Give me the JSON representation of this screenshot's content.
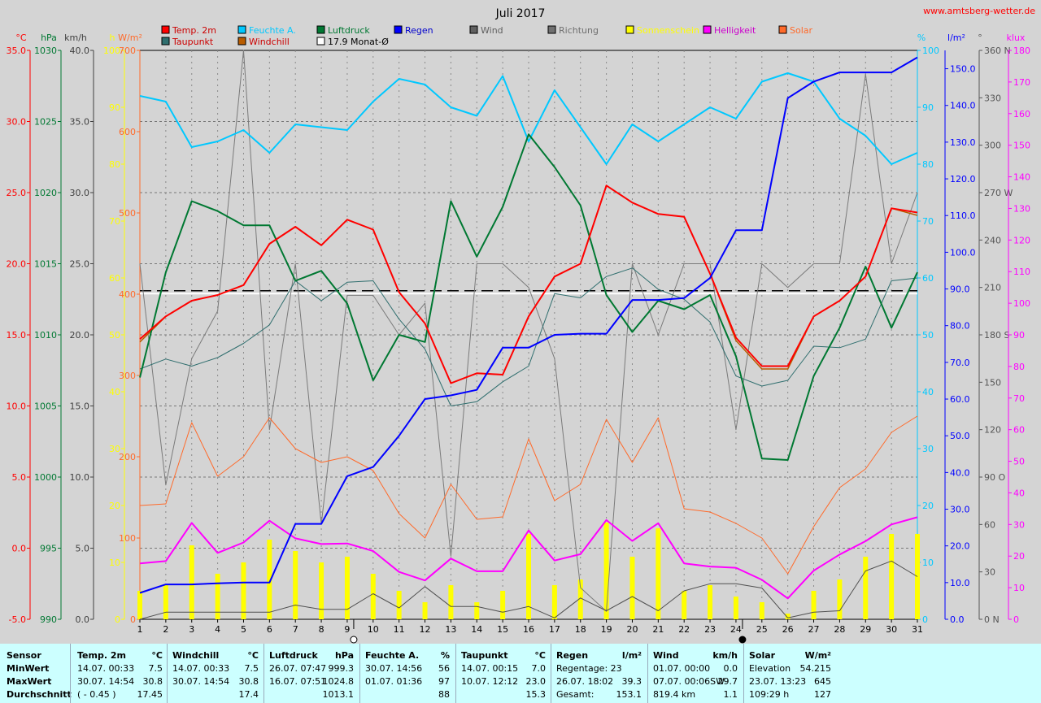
{
  "header": {
    "title": "Juli 2017",
    "site": "www.amtsberg-wetter.de",
    "monthly_avg_label": "17.9 Monat-Ø"
  },
  "colors": {
    "background": "#d4d4d4",
    "temp": "#ff0000",
    "humidity": "#00c8ff",
    "pressure": "#007832",
    "rain": "#0000ff",
    "wind": "#505050",
    "direction": "#7a7a7a",
    "sunshine": "#ffff00",
    "brightness": "#ff00ff",
    "solar": "#ff6a2a",
    "dewpoint": "#2f6e6e",
    "windchill": "#b85c00",
    "avg_line": "#ffffff",
    "stats_bg": "#ccffff"
  },
  "legend": [
    {
      "label": "Temp. 2m",
      "color": "#ff0000",
      "text_color": "#cc0000"
    },
    {
      "label": "Feuchte A.",
      "color": "#00c8ff",
      "text_color": "#00c8ff"
    },
    {
      "label": "Luftdruck",
      "color": "#007832",
      "text_color": "#007832"
    },
    {
      "label": "Regen",
      "color": "#0000ff",
      "text_color": "#0000cc"
    },
    {
      "label": "Wind",
      "color": "#606060",
      "text_color": "#606060"
    },
    {
      "label": "Richtung",
      "color": "#707070",
      "text_color": "#707070"
    },
    {
      "label": "Sonnenschein",
      "color": "#ffff00",
      "text_color": "#ffff00"
    },
    {
      "label": "Helligkeit",
      "color": "#ff00ff",
      "text_color": "#cc00cc"
    },
    {
      "label": "Solar",
      "color": "#ff6a2a",
      "text_color": "#ff6a2a"
    },
    {
      "label": "Taupunkt",
      "color": "#2f6e6e",
      "text_color": "#cc0000"
    },
    {
      "label": "Windchill",
      "color": "#b85c00",
      "text_color": "#cc0000"
    },
    {
      "label": "17.9 Monat-Ø",
      "color": "#ffffff",
      "text_color": "#000000"
    }
  ],
  "axes_left": [
    {
      "name": "temp",
      "unit": "°C",
      "color": "#ff0000",
      "ticks": [
        "35.0",
        "30.0",
        "25.0",
        "20.0",
        "15.0",
        "10.0",
        "5.0",
        "0.0",
        "-5.0"
      ]
    },
    {
      "name": "pressure",
      "unit": "hPa",
      "color": "#007832",
      "ticks": [
        "1030",
        "1025",
        "1020",
        "1015",
        "1010",
        "1005",
        "1000",
        "995",
        "990"
      ]
    },
    {
      "name": "wind",
      "unit": "km/h",
      "color": "#404040",
      "ticks": [
        "40.0",
        "35.0",
        "30.0",
        "25.0",
        "20.0",
        "15.0",
        "10.0",
        "5.0",
        "0.0"
      ]
    },
    {
      "name": "sunshine",
      "unit": "h",
      "color": "#ffff00",
      "ticks": [
        "100",
        "90",
        "80",
        "70",
        "60",
        "50",
        "40",
        "30",
        "20",
        "10",
        "0"
      ]
    },
    {
      "name": "solar",
      "unit": "W/m²",
      "color": "#ff6a2a",
      "ticks": [
        "700",
        "600",
        "500",
        "400",
        "300",
        "200",
        "100",
        "0"
      ]
    }
  ],
  "axes_right": [
    {
      "name": "humidity",
      "unit": "%",
      "color": "#00c8ff",
      "ticks": [
        "100",
        "90",
        "80",
        "70",
        "60",
        "50",
        "40",
        "30",
        "20",
        "10",
        "0"
      ]
    },
    {
      "name": "rain",
      "unit": "l/m²",
      "color": "#0000ff",
      "ticks": [
        "150.0",
        "140.0",
        "130.0",
        "120.0",
        "110.0",
        "100.0",
        "90.0",
        "80.0",
        "70.0",
        "60.0",
        "50.0",
        "40.0",
        "30.0",
        "20.0",
        "10.0",
        "0.0"
      ]
    },
    {
      "name": "direction",
      "unit": "°",
      "color": "#555555",
      "ticks": [
        "360 N",
        "330",
        "300",
        "270 W",
        "240",
        "210",
        "180 S",
        "150",
        "120",
        "90 O",
        "60",
        "30",
        "0 N"
      ]
    },
    {
      "name": "brightness",
      "unit": "klux",
      "color": "#ff00ff",
      "ticks": [
        "180",
        "170",
        "160",
        "150",
        "140",
        "130",
        "120",
        "110",
        "100",
        "90",
        "80",
        "70",
        "60",
        "50",
        "40",
        "30",
        "20",
        "10",
        "0"
      ]
    }
  ],
  "chart_data": {
    "type": "line",
    "title": "Juli 2017",
    "x": [
      1,
      2,
      3,
      4,
      5,
      6,
      7,
      8,
      9,
      10,
      11,
      12,
      13,
      14,
      15,
      16,
      17,
      18,
      19,
      20,
      21,
      22,
      23,
      24,
      25,
      26,
      27,
      28,
      29,
      30,
      31
    ],
    "x_tick_labels": [
      "1",
      "2",
      "3",
      "4",
      "5",
      "6",
      "7",
      "8",
      "9",
      "10",
      "11",
      "12",
      "13",
      "14",
      "15",
      "16",
      "17",
      "18",
      "19",
      "20",
      "21",
      "22",
      "23",
      "24",
      "25",
      "26",
      "27",
      "28",
      "29",
      "30",
      "31"
    ],
    "moon_markers": [
      {
        "day": 9,
        "phase": "full"
      },
      {
        "day": 24,
        "phase": "new"
      }
    ],
    "series": [
      {
        "name": "Temp. 2m",
        "unit": "°C",
        "values": [
          14.7,
          16.3,
          17.4,
          17.8,
          18.5,
          21.4,
          22.6,
          21.3,
          23.1,
          22.4,
          18.0,
          15.8,
          11.6,
          12.3,
          12.2,
          16.3,
          19.1,
          20.0,
          25.5,
          24.3,
          23.5,
          23.3,
          19.3,
          14.8,
          12.8,
          12.8,
          16.3,
          17.4,
          19.1,
          23.9,
          23.6
        ]
      },
      {
        "name": "Taupunkt",
        "unit": "°C",
        "values": [
          12.6,
          13.3,
          12.8,
          13.4,
          14.4,
          15.7,
          18.8,
          17.4,
          18.7,
          18.8,
          16.1,
          14.0,
          10.0,
          10.3,
          11.7,
          12.8,
          17.9,
          17.6,
          19.1,
          19.7,
          18.2,
          17.5,
          15.9,
          12.1,
          11.4,
          11.8,
          14.2,
          14.1,
          14.7,
          18.8,
          19.0
        ]
      },
      {
        "name": "Windchill",
        "unit": "°C",
        "values": [
          14.5,
          16.3,
          17.4,
          17.8,
          18.5,
          21.4,
          22.6,
          21.3,
          23.1,
          22.4,
          18.0,
          15.8,
          11.6,
          12.3,
          12.2,
          16.3,
          19.1,
          20.0,
          25.5,
          24.3,
          23.5,
          23.3,
          19.3,
          14.6,
          12.6,
          12.6,
          16.3,
          17.4,
          19.1,
          23.9,
          23.4
        ]
      },
      {
        "name": "Feuchte A.",
        "unit": "%",
        "values": [
          92,
          91,
          83,
          84,
          86,
          82,
          87,
          86.5,
          86,
          91,
          95,
          94,
          90,
          88.5,
          95.5,
          84,
          93,
          86.5,
          80,
          87,
          84,
          87,
          90,
          88,
          94.5,
          96,
          94.5,
          88,
          85,
          80,
          82
        ]
      },
      {
        "name": "Luftdruck",
        "unit": "hPa",
        "values": [
          1007.0,
          1014.4,
          1019.4,
          1018.7,
          1017.7,
          1017.7,
          1013.8,
          1014.5,
          1012.2,
          1006.8,
          1010.0,
          1009.5,
          1019.4,
          1015.5,
          1019.0,
          1024.1,
          1021.8,
          1019.1,
          1012.8,
          1010.2,
          1012.4,
          1011.8,
          1012.8,
          1008.5,
          1001.3,
          1001.2,
          1007.1,
          1010.5,
          1014.8,
          1010.5,
          1014.4
        ]
      },
      {
        "name": "Regen",
        "unit": "l/m²",
        "values": [
          7.2,
          9.5,
          9.5,
          9.8,
          10.0,
          10.0,
          26.0,
          26.0,
          39.0,
          41.5,
          50.0,
          60.0,
          61.0,
          62.5,
          74.0,
          74.0,
          77.5,
          77.8,
          77.8,
          87.0,
          87.0,
          87.5,
          93.0,
          106.0,
          106.0,
          142.0,
          146.5,
          149.0,
          149.0,
          149.0,
          153.1
        ]
      },
      {
        "name": "Wind",
        "unit": "km/h",
        "values": [
          0.0,
          0.5,
          0.5,
          0.5,
          0.5,
          0.5,
          1.0,
          0.7,
          0.7,
          1.8,
          0.8,
          2.3,
          0.9,
          0.9,
          0.5,
          0.9,
          0.1,
          1.5,
          0.6,
          1.6,
          0.6,
          2.0,
          2.5,
          2.5,
          2.2,
          0.1,
          0.5,
          0.6,
          3.4,
          4.1,
          3.0
        ]
      },
      {
        "name": "Richtung",
        "unit": "°",
        "values": [
          225,
          85,
          165,
          195,
          360,
          120,
          225,
          60,
          205,
          205,
          180,
          200,
          40,
          225,
          225,
          210,
          165,
          20,
          5,
          225,
          180,
          225,
          225,
          120,
          225,
          210,
          225,
          225,
          345,
          225,
          270
        ]
      },
      {
        "name": "Sonnenschein",
        "unit": "h",
        "values": [
          5,
          6,
          13,
          8,
          10,
          14,
          12,
          10,
          11,
          8,
          5,
          3,
          6,
          3,
          5,
          15,
          6,
          7,
          17,
          11,
          16,
          5,
          6,
          4,
          3,
          1,
          5,
          7,
          11,
          15,
          15
        ]
      },
      {
        "name": "Helligkeit",
        "unit": "klux",
        "values": [
          17.7,
          18.4,
          30.5,
          21.0,
          24.3,
          31.2,
          25.6,
          23.8,
          24.0,
          21.6,
          15.0,
          12.3,
          19.2,
          15.2,
          15.2,
          28.1,
          18.6,
          20.6,
          31.4,
          24.8,
          30.4,
          17.7,
          16.7,
          16.3,
          12.5,
          6.6,
          15.4,
          20.5,
          24.7,
          30.0,
          32.3
        ]
      },
      {
        "name": "Solar",
        "unit": "W/m²",
        "values": [
          140,
          142,
          242,
          176,
          200,
          248,
          210,
          193,
          200,
          183,
          130,
          100,
          166,
          123,
          126,
          222,
          146,
          166,
          246,
          193,
          248,
          136,
          132,
          118,
          100,
          56,
          114,
          162,
          185,
          230,
          250
        ]
      }
    ],
    "reference_lines": [
      {
        "name": "17.9 Monat-Ø",
        "unit": "°C",
        "value": 17.9
      },
      {
        "name": "Monat-Ø Luftdruck",
        "unit": "hPa",
        "value": 1013.1
      }
    ],
    "ylim": {
      "temp": [
        -5,
        35
      ],
      "pressure": [
        990,
        1030
      ],
      "wind": [
        0,
        40
      ],
      "sunshine": [
        0,
        100
      ],
      "solar": [
        0,
        700
      ],
      "humidity": [
        0,
        100
      ],
      "rain": [
        0,
        155
      ],
      "direction": [
        0,
        360
      ],
      "brightness": [
        0,
        180
      ]
    },
    "grid": true
  },
  "stats": {
    "row_labels": [
      "Sensor",
      "MinWert",
      "MaxWert",
      "Durchschnitt"
    ],
    "blocks": [
      {
        "name": "temp",
        "title": "Temp. 2m",
        "unit": "°C",
        "rows": [
          [
            "14.07.  00:33",
            "7.5"
          ],
          [
            "30.07.  14:54",
            "30.8"
          ],
          [
            "( - 0.45 )",
            "17.45"
          ]
        ]
      },
      {
        "name": "windchill",
        "title": "Windchill",
        "unit": "°C",
        "rows": [
          [
            "14.07.  00:33",
            "7.5"
          ],
          [
            "30.07.  14:54",
            "30.8"
          ],
          [
            "",
            "17.4"
          ]
        ]
      },
      {
        "name": "pressure",
        "title": "Luftdruck",
        "unit": "hPa",
        "rows": [
          [
            "26.07.  07:47",
            "999.3"
          ],
          [
            "16.07.  07:51",
            "1024.8"
          ],
          [
            "",
            "1013.1"
          ]
        ]
      },
      {
        "name": "humidity",
        "title": "Feuchte A.",
        "unit": "%",
        "rows": [
          [
            "30.07.  14:56",
            "56"
          ],
          [
            "01.07.  01:36",
            "97"
          ],
          [
            "",
            "88"
          ]
        ]
      },
      {
        "name": "dewpoint",
        "title": "Taupunkt",
        "unit": "°C",
        "rows": [
          [
            "14.07.  00:15",
            "7.0"
          ],
          [
            "10.07.  12:12",
            "23.0"
          ],
          [
            "",
            "15.3"
          ]
        ]
      },
      {
        "name": "rain",
        "title": "Regen",
        "unit": "l/m²",
        "rows": [
          [
            "Regentage: 23",
            ""
          ],
          [
            "26.07.  18:02",
            "39.3"
          ],
          [
            "Gesamt:",
            "153.1"
          ]
        ]
      },
      {
        "name": "wind",
        "title": "Wind",
        "unit": "km/h",
        "rows": [
          [
            "01.07.  00:00",
            "0.0"
          ],
          [
            "07.07.  00:06SW",
            "29.7"
          ],
          [
            "819.4 km",
            "1.1"
          ]
        ]
      },
      {
        "name": "solar",
        "title": "Solar",
        "unit": "W/m²",
        "rows": [
          [
            "Elevation",
            "54.215"
          ],
          [
            "23.07.  13:23",
            "645"
          ],
          [
            "109:29 h",
            "127"
          ]
        ]
      }
    ]
  }
}
